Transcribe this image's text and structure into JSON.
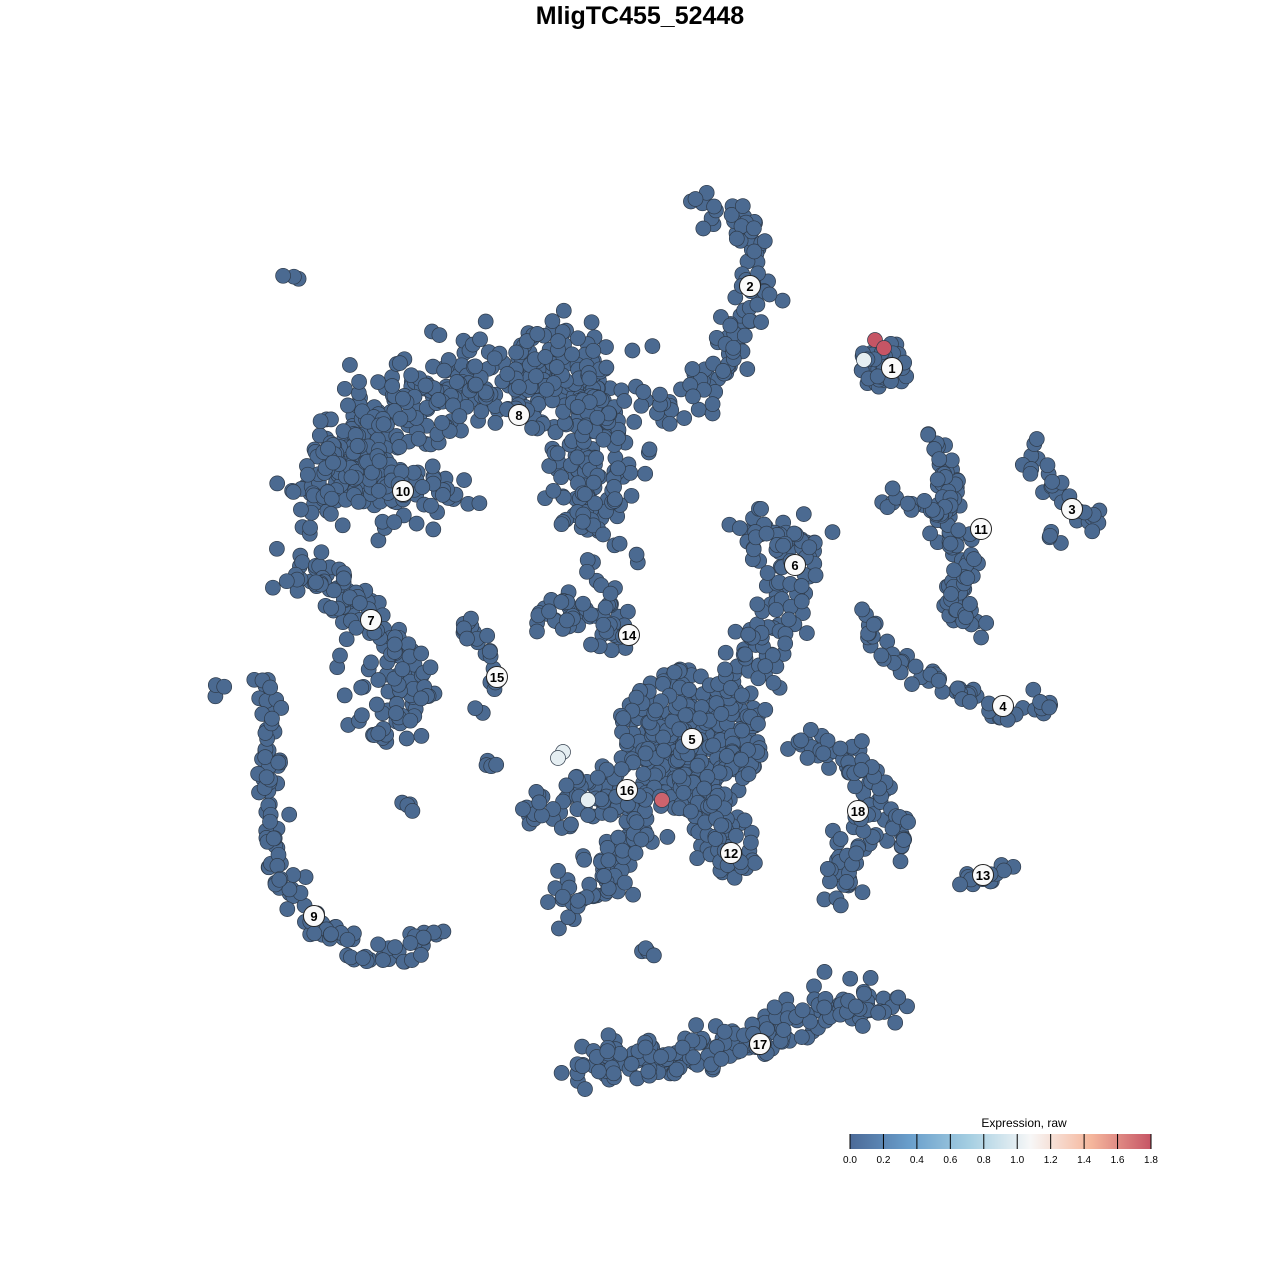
{
  "chart_data": {
    "type": "scatter",
    "title": "MligTC455_52448",
    "xlabel": "",
    "ylabel": "",
    "axes_visible": false,
    "grid": false,
    "point_color_default": "#4b6a91",
    "point_stroke": "#2f3b4a",
    "clusters": [
      {
        "label": "1",
        "center": [
          25.2,
          27.2
        ],
        "blob": [
          24.5,
          27.5,
          2.6
        ],
        "n": 40
      },
      {
        "label": "2",
        "center": [
          11,
          35.4
        ],
        "path": [
          [
            5,
            44
          ],
          [
            8,
            43
          ],
          [
            11,
            41
          ],
          [
            12,
            35
          ],
          [
            9,
            29
          ],
          [
            6,
            24
          ],
          [
            2.5,
            22.5
          ]
        ],
        "spread": 1.8,
        "n": 110
      },
      {
        "label": "3",
        "center": [
          43.2,
          13.1
        ],
        "path": [
          [
            39,
            19
          ],
          [
            41,
            16
          ],
          [
            44,
            12.5
          ],
          [
            46.5,
            12
          ]
        ],
        "extra": [
          [
            41,
            10.5
          ]
        ],
        "spread": 1.0,
        "n": 30
      },
      {
        "label": "4",
        "center": [
          36.3,
          -6.6
        ],
        "path": [
          [
            22,
            3
          ],
          [
            25,
            -2
          ],
          [
            31,
            -5
          ],
          [
            36,
            -7
          ],
          [
            41.5,
            -6.5
          ]
        ],
        "spread": 0.9,
        "n": 60
      },
      {
        "label": "5",
        "center": [
          5.2,
          -9.9
        ],
        "blob": [
          5,
          -10,
          7.5
        ],
        "n": 320
      },
      {
        "label": "6",
        "center": [
          15.5,
          7.5
        ],
        "path": [
          [
            11,
            11
          ],
          [
            16,
            9
          ],
          [
            15,
            4
          ],
          [
            12,
            -1
          ],
          [
            10,
            -5
          ]
        ],
        "spread": 2.5,
        "n": 130
      },
      {
        "label": "7",
        "center": [
          -26.9,
          2
        ],
        "path": [
          [
            -34,
            8
          ],
          [
            -29,
            4
          ],
          [
            -25,
            -1
          ],
          [
            -23,
            -6
          ],
          [
            -26,
            -8
          ]
        ],
        "spread": 2.6,
        "n": 150
      },
      {
        "label": "8",
        "center": [
          -12.1,
          22.5
        ],
        "path": [
          [
            -31,
            17
          ],
          [
            -24,
            23
          ],
          [
            -16,
            26
          ],
          [
            -8,
            27
          ],
          [
            -4,
            24
          ],
          [
            -5,
            16
          ],
          [
            -5,
            11
          ]
        ],
        "spread": 4.0,
        "n": 520
      },
      {
        "label": "9",
        "center": [
          -32.6,
          -27.6
        ],
        "path": [
          [
            -37,
            -4
          ],
          [
            -37.5,
            -14
          ],
          [
            -36.5,
            -23
          ],
          [
            -33,
            -28
          ],
          [
            -28,
            -31
          ],
          [
            -24,
            -32
          ],
          [
            -21,
            -29
          ]
        ],
        "spread": 1.2,
        "n": 130
      },
      {
        "label": "10",
        "center": [
          -23.7,
          14.9
        ],
        "path": [
          [
            -33,
            14
          ],
          [
            -29,
            18
          ],
          [
            -24,
            15
          ],
          [
            -19,
            14
          ]
        ],
        "spread": 3.0,
        "n": 150
      },
      {
        "label": "11",
        "center": [
          34.1,
          11.1
        ],
        "path": [
          [
            29.5,
            20
          ],
          [
            31,
            16
          ],
          [
            30.5,
            12
          ],
          [
            32.5,
            8
          ],
          [
            31,
            4
          ],
          [
            34,
            1
          ]
        ],
        "extra_path": [
          [
            24,
            14
          ],
          [
            30,
            13
          ]
        ],
        "spread": 1.4,
        "n": 110
      },
      {
        "label": "12",
        "center": [
          9.1,
          -21.3
        ],
        "path": [
          [
            6,
            -16
          ],
          [
            9,
            -20
          ],
          [
            10,
            -23
          ]
        ],
        "spread": 2.0,
        "n": 70
      },
      {
        "label": "13",
        "center": [
          34.3,
          -23.5
        ],
        "path": [
          [
            32,
            -23.8
          ],
          [
            35,
            -24
          ],
          [
            37,
            -22.2
          ]
        ],
        "spread": 0.6,
        "n": 14
      },
      {
        "label": "14",
        "center": [
          -1.1,
          0.5
        ],
        "path": [
          [
            -10,
            2.5
          ],
          [
            -4,
            3
          ],
          [
            -2,
            -1
          ]
        ],
        "spread": 1.5,
        "n": 60
      },
      {
        "label": "15",
        "center": [
          -14.3,
          -3.7
        ],
        "path": [
          [
            -17.5,
            1.5
          ],
          [
            -15,
            -1
          ],
          [
            -14.5,
            -4
          ],
          [
            -16.5,
            -7
          ]
        ],
        "spread": 0.7,
        "n": 25
      },
      {
        "label": "16",
        "center": [
          -1.3,
          -15
        ],
        "path": [
          [
            -12,
            -17
          ],
          [
            -6,
            -16
          ],
          [
            -2,
            -14
          ],
          [
            0,
            -19
          ],
          [
            -3,
            -24
          ],
          [
            -8,
            -27
          ]
        ],
        "spread": 2.0,
        "n": 150
      },
      {
        "label": "17",
        "center": [
          12,
          -40.4
        ],
        "path": [
          [
            -6.5,
            -42.5
          ],
          [
            1,
            -42
          ],
          [
            8,
            -41
          ],
          [
            14,
            -39
          ],
          [
            21,
            -36
          ],
          [
            25.5,
            -37
          ]
        ],
        "spread": 1.8,
        "n": 190
      },
      {
        "label": "18",
        "center": [
          21.8,
          -17.1
        ],
        "path": [
          [
            16,
            -11
          ],
          [
            22,
            -12
          ],
          [
            24,
            -16
          ],
          [
            21,
            -21
          ],
          [
            20,
            -25
          ]
        ],
        "extra_path": [
          [
            26,
            -18
          ],
          [
            27,
            -21
          ]
        ],
        "spread": 1.8,
        "n": 100
      }
    ],
    "stray_groups": [
      [
        -34.8,
        36.5,
        3
      ],
      [
        -42,
        -5,
        3
      ],
      [
        -23,
        -16.5,
        4
      ],
      [
        0.5,
        -31,
        4
      ],
      [
        -15,
        -12,
        4
      ]
    ],
    "expressing_points": [
      {
        "x": 23.5,
        "y": 30,
        "value": 1.8
      },
      {
        "x": 24.4,
        "y": 29.2,
        "value": 1.8
      },
      {
        "x": 2.2,
        "y": -16,
        "value": 1.75
      },
      {
        "x": 22.4,
        "y": 28,
        "value": 1.0
      },
      {
        "x": -7.7,
        "y": -11.2,
        "value": 1.0
      },
      {
        "x": -8.2,
        "y": -11.8,
        "value": 1.0
      },
      {
        "x": -5.2,
        "y": -16,
        "value": 1.0
      }
    ],
    "colorbar": {
      "title": "Expression, raw",
      "min": 0.0,
      "max": 1.8,
      "ticks": [
        "0.0",
        "0.2",
        "0.4",
        "0.6",
        "0.8",
        "1.0",
        "1.2",
        "1.4",
        "1.6",
        "1.8"
      ],
      "colors": [
        "#4b6a98",
        "#6a9fcc",
        "#a6cfe2",
        "#f7f7f7",
        "#f5b79d",
        "#c65565"
      ],
      "placement": "bottom-right"
    }
  }
}
